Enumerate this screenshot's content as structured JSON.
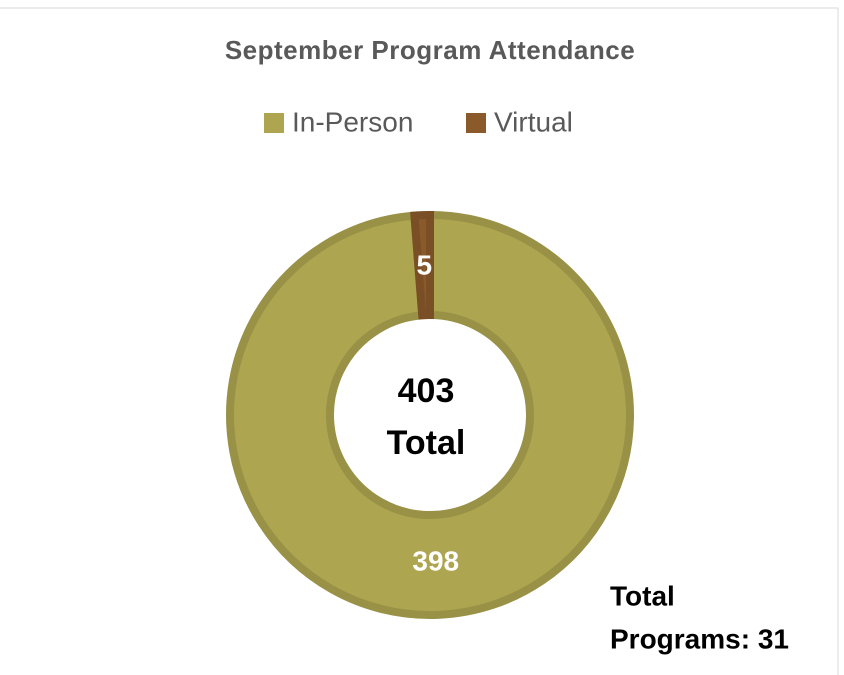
{
  "chart_data": {
    "type": "donut",
    "title": "September Program Attendance",
    "categories": [
      "In-Person",
      "Virtual"
    ],
    "values": [
      398,
      5
    ],
    "colors": [
      "#ada54f",
      "#8b5a2b"
    ],
    "legend": "top",
    "center_label_lines": [
      "403",
      "Total"
    ],
    "annotation_lines": [
      "Total",
      "Programs: 31"
    ]
  }
}
